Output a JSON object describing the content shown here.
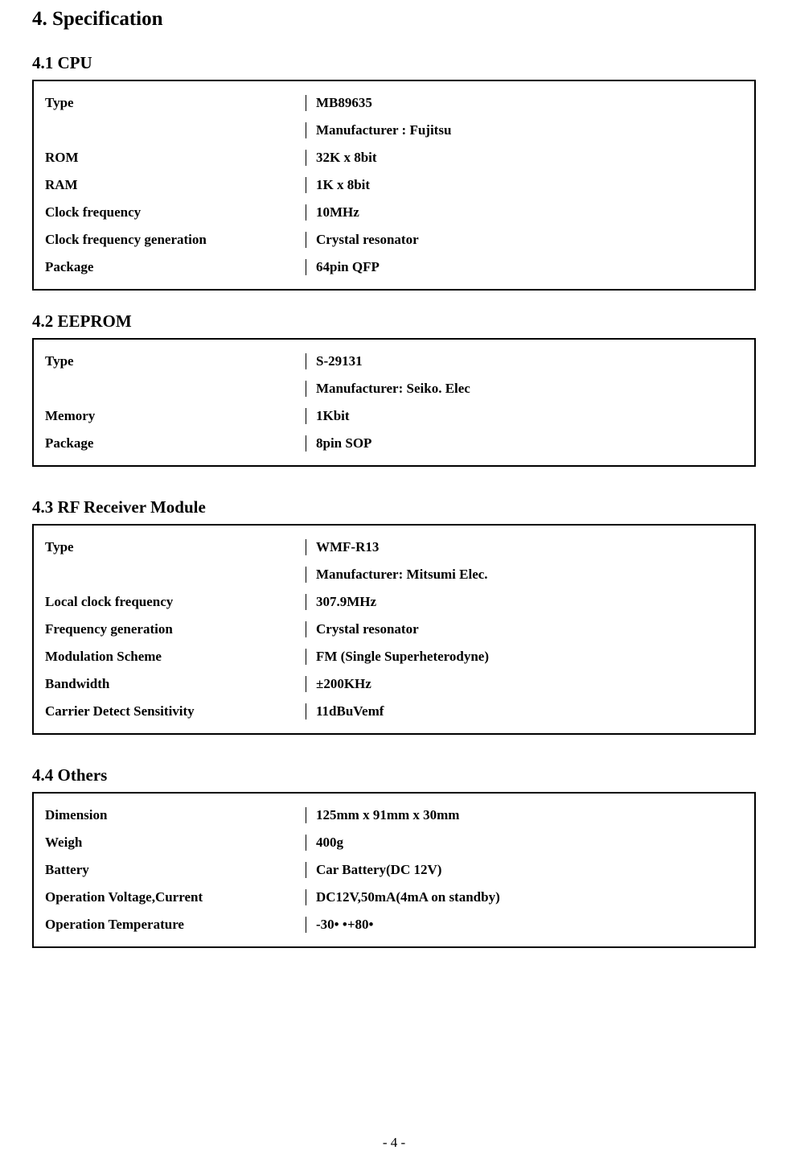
{
  "heading": "4. Specification",
  "sections": {
    "cpu": {
      "title": "4.1 CPU",
      "rows": [
        {
          "label": "Type",
          "value": "MB89635"
        },
        {
          "label": "",
          "value": "Manufacturer : Fujitsu"
        },
        {
          "label": "ROM",
          "value": "32K x 8bit"
        },
        {
          "label": "RAM",
          "value": "1K x 8bit"
        },
        {
          "label": "Clock frequency",
          "value": "10MHz"
        },
        {
          "label": "Clock frequency generation",
          "value": "Crystal resonator"
        },
        {
          "label": "Package",
          "value": "64pin QFP"
        }
      ]
    },
    "eeprom": {
      "title": "4.2 EEPROM",
      "rows": [
        {
          "label": "Type",
          "value": "S-29131"
        },
        {
          "label": "",
          "value": "Manufacturer: Seiko. Elec"
        },
        {
          "label": "Memory",
          "value": "1Kbit"
        },
        {
          "label": "Package",
          "value": "8pin SOP"
        }
      ]
    },
    "rf": {
      "title": "4.3 RF Receiver Module",
      "rows": [
        {
          "label": "Type",
          "value": "WMF-R13"
        },
        {
          "label": "",
          "value": "Manufacturer: Mitsumi Elec."
        },
        {
          "label": "Local clock frequency",
          "value": "307.9MHz"
        },
        {
          "label": "Frequency generation",
          "value": "Crystal resonator"
        },
        {
          "label": "Modulation Scheme",
          "value": "FM (Single Superheterodyne)"
        },
        {
          "label": "Bandwidth",
          "value": "±200KHz"
        },
        {
          "label": "Carrier Detect Sensitivity",
          "value": "11dBuVemf"
        }
      ]
    },
    "others": {
      "title": "4.4 Others",
      "rows": [
        {
          "label": "Dimension",
          "value": "125mm x 91mm x 30mm"
        },
        {
          "label": "Weigh",
          "value": "400g"
        },
        {
          "label": "Battery",
          "value": "Car Battery(DC 12V)"
        },
        {
          "label": "Operation Voltage,Current",
          "value": "DC12V,50mA(4mA on standby)"
        },
        {
          "label": "Operation Temperature",
          "value": "-30• •+80•"
        }
      ]
    }
  },
  "page_number": "- 4 -"
}
